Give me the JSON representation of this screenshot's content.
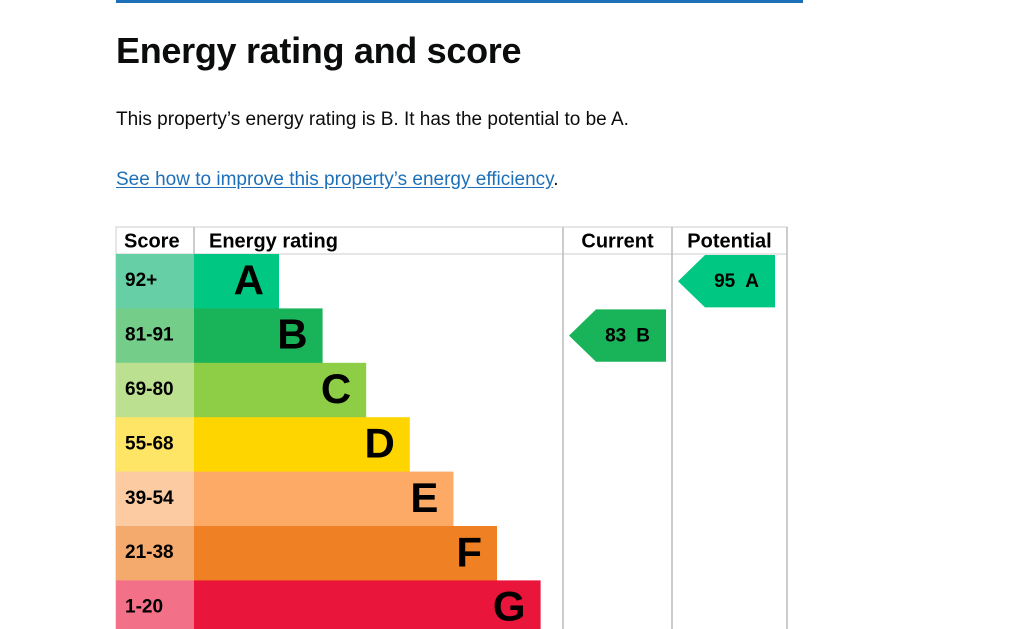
{
  "header": {
    "title": "Energy rating and score"
  },
  "intro": "This property’s energy rating is B. It has the potential to be A.",
  "link": {
    "text": "See how to improve this property’s energy efficiency",
    "trailing": "."
  },
  "table": {
    "columns": [
      "Score",
      "Energy rating",
      "Current",
      "Potential"
    ],
    "rows": [
      {
        "score": "92+",
        "rating": "A",
        "color": "#00c781",
        "score_color": "#66cfa6"
      },
      {
        "score": "81-91",
        "rating": "B",
        "color": "#19b459",
        "score_color": "#75cd8a"
      },
      {
        "score": "69-80",
        "rating": "C",
        "color": "#8dce46",
        "score_color": "#bbe08f"
      },
      {
        "score": "55-68",
        "rating": "D",
        "color": "#ffd500",
        "score_color": "#ffe566"
      },
      {
        "score": "39-54",
        "rating": "E",
        "color": "#fcaa65",
        "score_color": "#fdcba2"
      },
      {
        "score": "21-38",
        "rating": "F",
        "color": "#ef8023",
        "score_color": "#f4a96d"
      },
      {
        "score": "1-20",
        "rating": "G",
        "color": "#e9153b",
        "score_color": "#f27189"
      }
    ],
    "current": {
      "score": 83,
      "rating": "B"
    },
    "potential": {
      "score": 95,
      "rating": "A"
    }
  }
}
